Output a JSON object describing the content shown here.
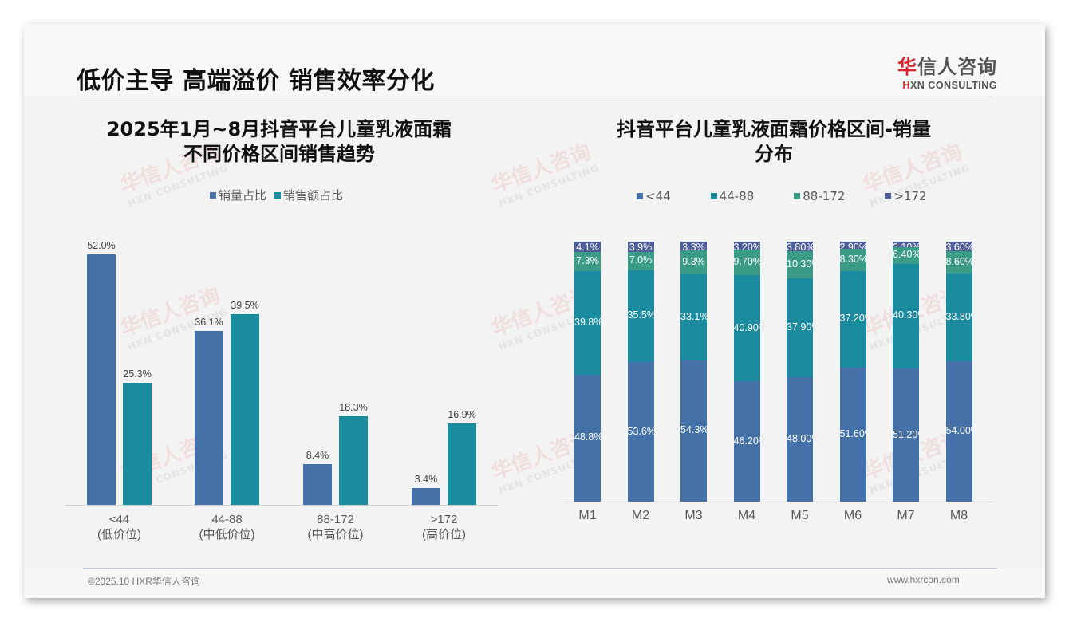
{
  "header": {
    "title": "低价主导 高端溢价 销售效率分化",
    "logo_cn_first": "华",
    "logo_cn_rest": "信人咨询",
    "logo_en_first": "H",
    "logo_en_rest": "XN CONSULTING"
  },
  "watermark": {
    "cn": "华信人咨询",
    "en": "HXN CONSULTING"
  },
  "left_chart": {
    "title_line1": "2025年1月~8月抖音平台儿童乳液面霜",
    "title_line2": "不同价格区间销售趋势",
    "legend": [
      {
        "label": "销量占比",
        "color": "#4472a8"
      },
      {
        "label": "销售额占比",
        "color": "#1b8ba0"
      }
    ],
    "categories": [
      {
        "range": "<44",
        "tier": "(低价位)"
      },
      {
        "range": "44-88",
        "tier": "(中低价位)"
      },
      {
        "range": "88-172",
        "tier": "(中高价位)"
      },
      {
        "range": ">172",
        "tier": "(高价位)"
      }
    ],
    "volume_labels": [
      "52.0%",
      "36.1%",
      "8.4%",
      "3.4%"
    ],
    "sales_labels": [
      "25.3%",
      "39.5%",
      "18.3%",
      "16.9%"
    ]
  },
  "right_chart": {
    "title_line1": "抖音平台儿童乳液面霜价格区间-销量",
    "title_line2": "分布",
    "legend": [
      {
        "label": "<44",
        "color": "#4472a8"
      },
      {
        "label": "44-88",
        "color": "#1b8ba0"
      },
      {
        "label": "88-172",
        "color": "#3a9c86"
      },
      {
        "label": ">172",
        "color": "#4f5e9a"
      }
    ],
    "months": [
      "M1",
      "M2",
      "M3",
      "M4",
      "M5",
      "M6",
      "M7",
      "M8"
    ],
    "labels": {
      "lt44": [
        "48.8%",
        "53.6%",
        "54.3%",
        "46.20%",
        "48.00%",
        "51.60%",
        "51.20%",
        "54.00%"
      ],
      "r44_88": [
        "39.8%",
        "35.5%",
        "33.1%",
        "40.90%",
        "37.90%",
        "37.20%",
        "40.30%",
        "33.80%"
      ],
      "r88_172": [
        "7.3%",
        "7.0%",
        "9.3%",
        "9.70%",
        "10.30%",
        "8.30%",
        "6.40%",
        "8.60%"
      ],
      "gt172": [
        "4.1%",
        "3.9%",
        "3.3%",
        "3.20%",
        "3.80%",
        "2.90%",
        "2.10%",
        "3.60%"
      ]
    }
  },
  "footer": {
    "left": "©2025.10 HXR华信人咨询",
    "right": "www.hxrcon.com"
  },
  "chart_data": [
    {
      "type": "bar",
      "title": "2025年1月~8月抖音平台儿童乳液面霜不同价格区间销售趋势",
      "categories": [
        "<44 (低价位)",
        "44-88 (中低价位)",
        "88-172 (中高价位)",
        ">172 (高价位)"
      ],
      "series": [
        {
          "name": "销量占比",
          "values": [
            52.0,
            36.1,
            8.4,
            3.4
          ],
          "color": "#4472a8"
        },
        {
          "name": "销售额占比",
          "values": [
            25.3,
            39.5,
            18.3,
            16.9
          ],
          "color": "#1b8ba0"
        }
      ],
      "xlabel": "",
      "ylabel": "%",
      "ylim": [
        0,
        55
      ],
      "grid": false,
      "legend_position": "top"
    },
    {
      "type": "bar",
      "stacked": true,
      "title": "抖音平台儿童乳液面霜价格区间-销量分布",
      "categories": [
        "M1",
        "M2",
        "M3",
        "M4",
        "M5",
        "M6",
        "M7",
        "M8"
      ],
      "series": [
        {
          "name": "<44",
          "values": [
            48.8,
            53.6,
            54.3,
            46.2,
            48.0,
            51.6,
            51.2,
            54.0
          ],
          "color": "#4472a8"
        },
        {
          "name": "44-88",
          "values": [
            39.8,
            35.5,
            33.1,
            40.9,
            37.9,
            37.2,
            40.3,
            33.8
          ],
          "color": "#1b8ba0"
        },
        {
          "name": "88-172",
          "values": [
            7.3,
            7.0,
            9.3,
            9.7,
            10.3,
            8.3,
            6.4,
            8.6
          ],
          "color": "#3a9c86"
        },
        {
          "name": ">172",
          "values": [
            4.1,
            3.9,
            3.3,
            3.2,
            3.8,
            2.9,
            2.1,
            3.6
          ],
          "color": "#4f5e9a"
        }
      ],
      "xlabel": "",
      "ylabel": "%",
      "ylim": [
        0,
        100
      ],
      "grid": false,
      "legend_position": "top"
    }
  ]
}
